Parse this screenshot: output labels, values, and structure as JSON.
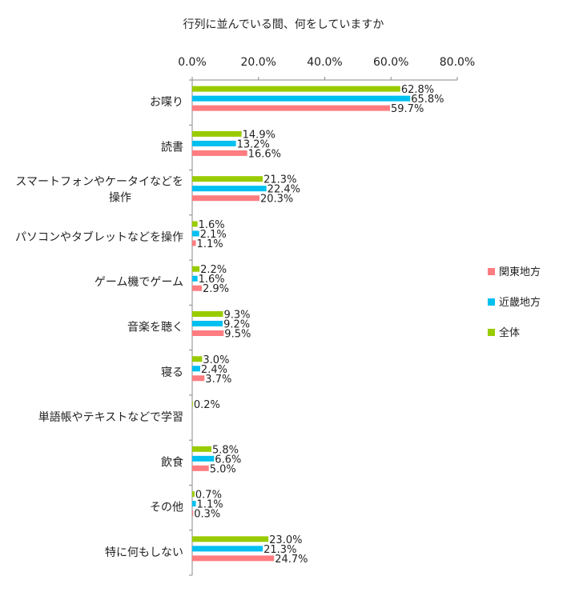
{
  "chart_data": {
    "type": "bar",
    "orientation": "horizontal",
    "title": "行列に並んでいる間、何をしていますか",
    "xlabel": "",
    "ylabel": "",
    "xlim": [
      0,
      80
    ],
    "x_ticks": [
      "0.0%",
      "20.0%",
      "40.0%",
      "60.0%",
      "80.0%"
    ],
    "grid": false,
    "legend_position": "right",
    "categories": [
      "お喋り",
      "読書",
      "スマートフォンやケータイなどを操作",
      "パソコンやタブレットなどを操作",
      "ゲーム機でゲーム",
      "音楽を聴く",
      "寝る",
      "単語帳やテキストなどで学習",
      "飲食",
      "その他",
      "特に何もしない"
    ],
    "series": [
      {
        "name": "全体",
        "color": "#99cc00",
        "values": [
          62.8,
          14.9,
          21.3,
          1.6,
          2.2,
          9.3,
          3.0,
          0.2,
          5.8,
          0.7,
          23.0
        ],
        "labels": [
          "62.8%",
          "14.9%",
          "21.3%",
          "1.6%",
          "2.2%",
          "9.3%",
          "3.0%",
          "0.2%",
          "5.8%",
          "0.7%",
          "23.0%"
        ]
      },
      {
        "name": "近畿地方",
        "color": "#00c0f0",
        "values": [
          65.8,
          13.2,
          22.4,
          2.1,
          1.6,
          9.2,
          2.4,
          0.0,
          6.6,
          1.1,
          21.3
        ],
        "labels": [
          "65.8%",
          "13.2%",
          "22.4%",
          "2.1%",
          "1.6%",
          "9.2%",
          "2.4%",
          "",
          "6.6%",
          "1.1%",
          "21.3%"
        ]
      },
      {
        "name": "関東地方",
        "color": "#ff7c80",
        "values": [
          59.7,
          16.6,
          20.3,
          1.1,
          2.9,
          9.5,
          3.7,
          0.0,
          5.0,
          0.3,
          24.7
        ],
        "labels": [
          "59.7%",
          "16.6%",
          "20.3%",
          "1.1%",
          "2.9%",
          "9.5%",
          "3.7%",
          "",
          "5.0%",
          "0.3%",
          "24.7%"
        ]
      }
    ],
    "legend_order": [
      "関東地方",
      "近畿地方",
      "全体"
    ]
  }
}
